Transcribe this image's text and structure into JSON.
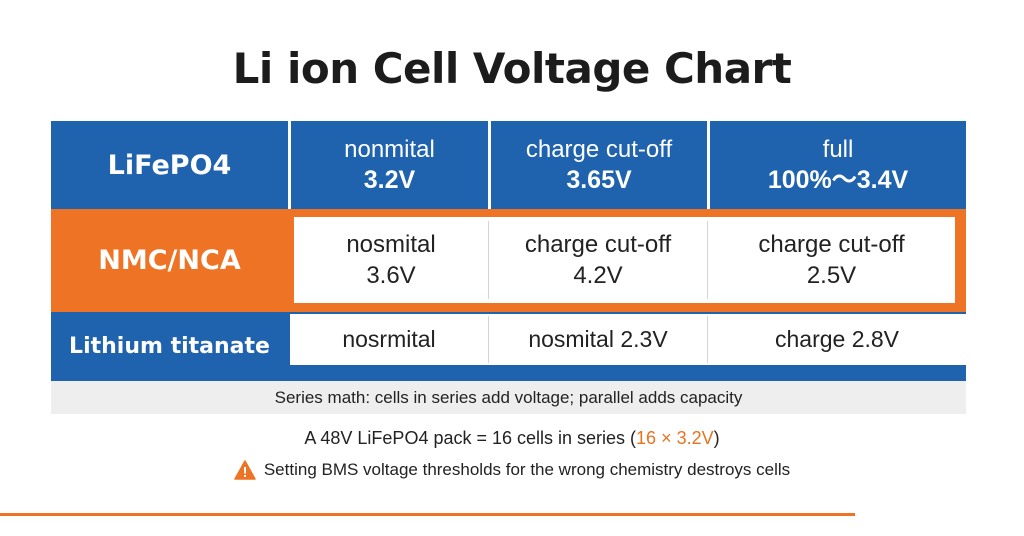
{
  "title": "Li ion Cell Voltage Chart",
  "rows": [
    {
      "chemistry": "LiFePO4",
      "cells": [
        {
          "line1": "nonmital",
          "line2": "3.2V"
        },
        {
          "line1": "charge cut-off",
          "line2": "3.65V"
        },
        {
          "line1": "full",
          "line2": "100%～3.4V"
        }
      ]
    },
    {
      "chemistry": "NMC/NCA",
      "cells": [
        {
          "line1": "nosmital",
          "line2": "3.6V"
        },
        {
          "line1": "charge cut-off",
          "line2": "4.2V"
        },
        {
          "line1": "charge cut-off",
          "line2": "2.5V"
        }
      ]
    },
    {
      "chemistry": "Lithium titanate",
      "cells": [
        {
          "text": "nosrmital"
        },
        {
          "text": "nosmital 2.3V"
        },
        {
          "text": "charge 2.8V"
        }
      ]
    }
  ],
  "series_math": "Series math: cells in series add voltage; parallel adds capacity",
  "pack_note": {
    "prefix": "A 48V LiFePO4 pack = 16 cells in series (",
    "highlight": "16 × 3.2V",
    "suffix": ")"
  },
  "warning": {
    "icon": "warning-triangle-icon",
    "text": "Setting BMS voltage thresholds for the wrong chemistry destroys cells"
  },
  "colors": {
    "blue": "#1f62ad",
    "orange": "#ee7325"
  }
}
